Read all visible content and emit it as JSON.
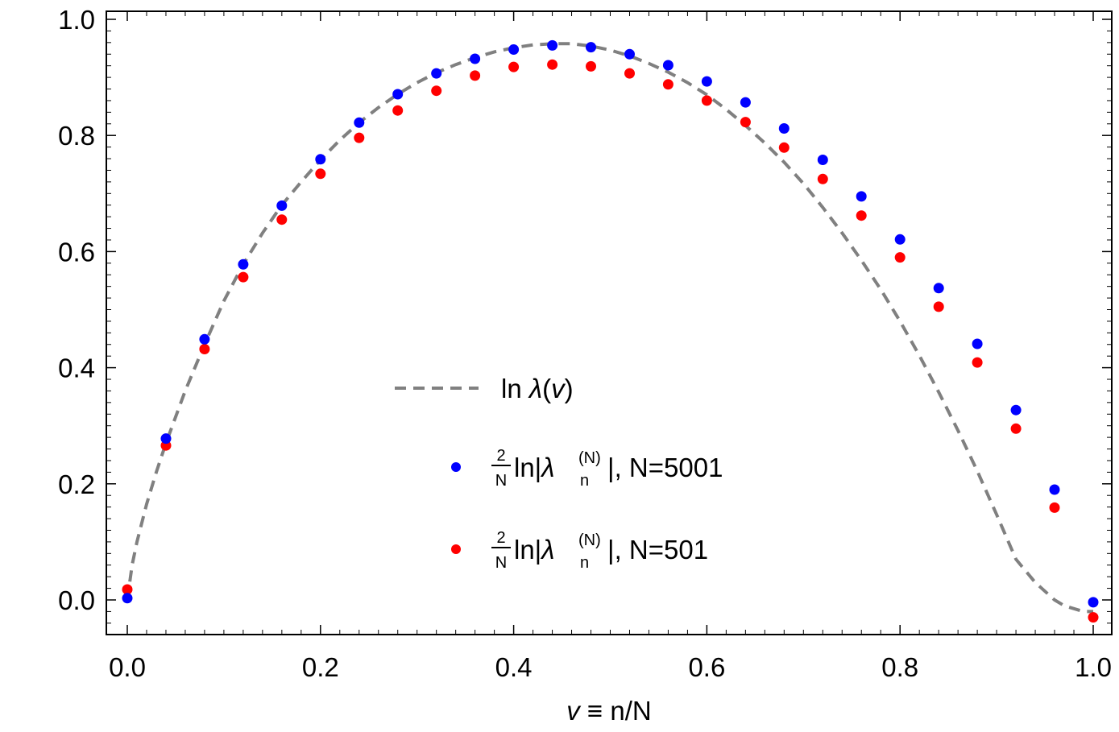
{
  "chart_data": {
    "type": "scatter",
    "xlim": [
      0.0,
      1.0
    ],
    "ylim": [
      -0.06,
      1.0
    ],
    "xticks": [
      "0.0",
      "0.2",
      "0.4",
      "0.6",
      "0.8",
      "1.0"
    ],
    "yticks": [
      "0.0",
      "0.2",
      "0.4",
      "0.6",
      "0.8",
      "1.0"
    ],
    "xlabel": {
      "symbol": "v",
      "rest": " ≡ n/N"
    },
    "ylabel": "",
    "curve": {
      "name": "ln λ(v)",
      "color": "#808080",
      "style": "dashed",
      "x": [
        0.0,
        0.005,
        0.01,
        0.02,
        0.03,
        0.04,
        0.06,
        0.08,
        0.1,
        0.12,
        0.14,
        0.16,
        0.18,
        0.2,
        0.22,
        0.24,
        0.26,
        0.28,
        0.3,
        0.32,
        0.34,
        0.36,
        0.38,
        0.4,
        0.42,
        0.44,
        0.46,
        0.48,
        0.5,
        0.52,
        0.54,
        0.56,
        0.58,
        0.6,
        0.62,
        0.64,
        0.66,
        0.68,
        0.7,
        0.72,
        0.74,
        0.76,
        0.78,
        0.8,
        0.82,
        0.84,
        0.86,
        0.88,
        0.9,
        0.92,
        0.94,
        0.96,
        0.97,
        0.98,
        0.99,
        0.995,
        1.0
      ],
      "y": [
        0.0,
        0.06,
        0.1,
        0.165,
        0.22,
        0.27,
        0.36,
        0.44,
        0.515,
        0.578,
        0.632,
        0.68,
        0.72,
        0.758,
        0.792,
        0.822,
        0.848,
        0.871,
        0.891,
        0.908,
        0.922,
        0.934,
        0.944,
        0.951,
        0.956,
        0.958,
        0.958,
        0.954,
        0.947,
        0.937,
        0.924,
        0.909,
        0.891,
        0.87,
        0.845,
        0.817,
        0.787,
        0.754,
        0.717,
        0.676,
        0.632,
        0.585,
        0.535,
        0.48,
        0.421,
        0.358,
        0.292,
        0.222,
        0.147,
        0.07,
        0.03,
        0.0,
        -0.01,
        -0.015,
        -0.02,
        -0.02,
        -0.02
      ]
    },
    "series": [
      {
        "name": "N=5001",
        "label_prefix": "2/N ln|λ",
        "color": "#0000ff",
        "x": [
          0.0,
          0.04,
          0.08,
          0.12,
          0.16,
          0.2,
          0.24,
          0.28,
          0.32,
          0.36,
          0.4,
          0.44,
          0.48,
          0.52,
          0.56,
          0.6,
          0.64,
          0.68,
          0.72,
          0.76,
          0.8,
          0.84,
          0.88,
          0.92,
          0.96,
          1.0
        ],
        "y": [
          0.003,
          0.278,
          0.449,
          0.578,
          0.679,
          0.759,
          0.822,
          0.871,
          0.907,
          0.932,
          0.948,
          0.955,
          0.952,
          0.94,
          0.921,
          0.893,
          0.857,
          0.812,
          0.758,
          0.695,
          0.621,
          0.537,
          0.441,
          0.327,
          0.19,
          -0.004
        ]
      },
      {
        "name": "N=501",
        "label_prefix": "2/N ln|λ",
        "color": "#ff0000",
        "x": [
          0.0,
          0.04,
          0.08,
          0.12,
          0.16,
          0.2,
          0.24,
          0.28,
          0.32,
          0.36,
          0.4,
          0.44,
          0.48,
          0.52,
          0.56,
          0.6,
          0.64,
          0.68,
          0.72,
          0.76,
          0.8,
          0.84,
          0.88,
          0.92,
          0.96,
          1.0
        ],
        "y": [
          0.018,
          0.266,
          0.432,
          0.556,
          0.655,
          0.734,
          0.796,
          0.843,
          0.877,
          0.903,
          0.918,
          0.922,
          0.919,
          0.907,
          0.888,
          0.86,
          0.823,
          0.779,
          0.725,
          0.662,
          0.59,
          0.505,
          0.409,
          0.295,
          0.159,
          -0.03
        ]
      }
    ],
    "legend": {
      "position": "center",
      "curve_label": {
        "prefix": "ln ",
        "lambda": "λ",
        "open": "(",
        "var": "v",
        "close": ")"
      },
      "entries": [
        {
          "frac_num": "2",
          "frac_den": "N",
          "ln": "ln|",
          "lambda": "λ",
          "sub": "n",
          "sup": "(N)",
          "tail": "|,  N=5001",
          "color": "#0000ff"
        },
        {
          "frac_num": "2",
          "frac_den": "N",
          "ln": "ln|",
          "lambda": "λ",
          "sub": "n",
          "sup": "(N)",
          "tail": "|,  N=501",
          "color": "#ff0000"
        }
      ]
    }
  }
}
